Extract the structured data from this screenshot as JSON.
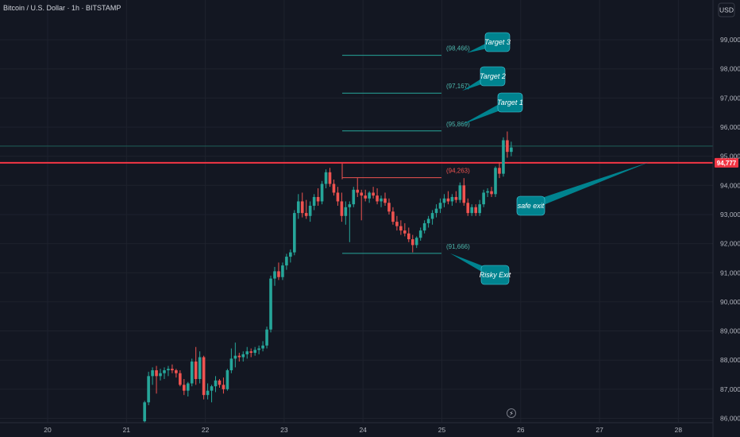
{
  "header": {
    "symbol_title": "Bitcoin / U.S. Dollar · 1h · BITSTAMP",
    "currency_button": "USD"
  },
  "colors": {
    "background": "#131722",
    "grid": "#1e222d",
    "up": "#26a69a",
    "down": "#ef5350",
    "price_line": "#f23645",
    "target_line": "#26a69a",
    "callout": "#00838f",
    "axis_text": "#b2b5be"
  },
  "chart_data": {
    "type": "candlestick",
    "timeframe": "1h",
    "x_ticks": [
      "20",
      "21",
      "22",
      "23",
      "24",
      "25",
      "26",
      "27",
      "28"
    ],
    "y_ticks": [
      "86,000",
      "87,000",
      "88,000",
      "89,000",
      "90,000",
      "91,000",
      "92,000",
      "93,000",
      "94,000",
      "95,000",
      "96,000",
      "97,000",
      "98,000",
      "99,000"
    ],
    "y_tick_values": [
      86000,
      87000,
      88000,
      89000,
      90000,
      91000,
      92000,
      93000,
      94000,
      95000,
      96000,
      97000,
      98000,
      99000
    ],
    "ylim": [
      85800,
      99650
    ],
    "xlim_days": [
      19.55,
      28.55
    ],
    "current_price": {
      "value": 94777,
      "label": "94,777"
    },
    "levels": [
      {
        "name": "Target 3",
        "value": 98466,
        "label": "(98,466)",
        "color": "#26a69a"
      },
      {
        "name": "Target 2",
        "value": 97167,
        "label": "(97,167)",
        "color": "#26a69a"
      },
      {
        "name": "Target 1",
        "value": 95869,
        "label": "(95,869)",
        "color": "#26a69a"
      },
      {
        "name": "",
        "value": 94263,
        "label": "(94,263)",
        "color": "#ef5350"
      },
      {
        "name": "Risky Exit",
        "value": 91666,
        "label": "(91,666)",
        "color": "#26a69a"
      }
    ],
    "upper_reference_line": 95350,
    "annotations": [
      "Target 3",
      "Target 2",
      "Target 1",
      "safe exit",
      "Risky Exit"
    ],
    "candles_ohlc": [
      [
        85900,
        86600,
        85850,
        86550
      ],
      [
        86550,
        87600,
        86450,
        87450
      ],
      [
        87450,
        87750,
        87150,
        87650
      ],
      [
        87650,
        87800,
        86850,
        87450
      ],
      [
        87450,
        87700,
        87300,
        87550
      ],
      [
        87550,
        87750,
        87350,
        87650
      ],
      [
        87650,
        87800,
        87450,
        87700
      ],
      [
        87700,
        87850,
        87550,
        87650
      ],
      [
        87650,
        87700,
        87400,
        87550
      ],
      [
        87550,
        87650,
        87100,
        87150
      ],
      [
        87150,
        87350,
        86800,
        86950
      ],
      [
        86950,
        87250,
        86750,
        87200
      ],
      [
        87200,
        88050,
        87100,
        87950
      ],
      [
        87950,
        88450,
        87150,
        87350
      ],
      [
        87350,
        88300,
        87200,
        88100
      ],
      [
        88100,
        88150,
        86650,
        86800
      ],
      [
        86800,
        87200,
        86650,
        86950
      ],
      [
        86950,
        87150,
        86550,
        87100
      ],
      [
        87100,
        87450,
        86900,
        87300
      ],
      [
        87300,
        87350,
        87050,
        87150
      ],
      [
        87150,
        87400,
        86850,
        87000
      ],
      [
        87000,
        87700,
        86950,
        87650
      ],
      [
        87650,
        88400,
        87550,
        88050
      ],
      [
        88050,
        88600,
        87750,
        88150
      ],
      [
        88150,
        88250,
        87950,
        88100
      ],
      [
        88100,
        88300,
        87950,
        88200
      ],
      [
        88200,
        88450,
        88050,
        88300
      ],
      [
        88300,
        88400,
        88100,
        88250
      ],
      [
        88250,
        88450,
        88150,
        88350
      ],
      [
        88350,
        88500,
        88200,
        88400
      ],
      [
        88400,
        88650,
        88300,
        88500
      ],
      [
        88500,
        89150,
        88400,
        89050
      ],
      [
        89050,
        90900,
        88950,
        90800
      ],
      [
        90800,
        91200,
        90550,
        91050
      ],
      [
        91050,
        91350,
        90750,
        90850
      ],
      [
        90850,
        91350,
        90750,
        91250
      ],
      [
        91250,
        91650,
        91100,
        91550
      ],
      [
        91550,
        91800,
        91350,
        91700
      ],
      [
        91700,
        93150,
        91600,
        93050
      ],
      [
        93050,
        93700,
        92850,
        93450
      ],
      [
        93450,
        93750,
        92900,
        93050
      ],
      [
        93050,
        93500,
        92850,
        92950
      ],
      [
        92950,
        93450,
        92750,
        93300
      ],
      [
        93300,
        93700,
        93150,
        93600
      ],
      [
        93600,
        93900,
        93300,
        93450
      ],
      [
        93450,
        94150,
        93350,
        94050
      ],
      [
        94050,
        94550,
        93900,
        94450
      ],
      [
        94450,
        94600,
        93950,
        94050
      ],
      [
        94050,
        94200,
        93650,
        93750
      ],
      [
        93750,
        93950,
        93300,
        93450
      ],
      [
        93450,
        93750,
        92750,
        92950
      ],
      [
        92950,
        93450,
        92650,
        93250
      ],
      [
        93250,
        93450,
        92050,
        93350
      ],
      [
        93350,
        93950,
        93250,
        93850
      ],
      [
        93850,
        94250,
        93600,
        93750
      ],
      [
        93750,
        93850,
        92800,
        93650
      ],
      [
        93650,
        93850,
        93450,
        93550
      ],
      [
        93550,
        93800,
        93400,
        93750
      ],
      [
        93750,
        93950,
        93550,
        93650
      ],
      [
        93650,
        93900,
        93350,
        93450
      ],
      [
        93450,
        93650,
        93250,
        93550
      ],
      [
        93550,
        93750,
        93300,
        93400
      ],
      [
        93400,
        93550,
        93000,
        93100
      ],
      [
        93100,
        93250,
        92650,
        92750
      ],
      [
        92750,
        92950,
        92450,
        92600
      ],
      [
        92600,
        92800,
        92300,
        92450
      ],
      [
        92450,
        92700,
        92250,
        92350
      ],
      [
        92350,
        92550,
        92050,
        92150
      ],
      [
        92150,
        92300,
        91700,
        91950
      ],
      [
        91950,
        92250,
        91850,
        92200
      ],
      [
        92200,
        92550,
        92100,
        92450
      ],
      [
        92450,
        92800,
        92350,
        92700
      ],
      [
        92700,
        92950,
        92550,
        92850
      ],
      [
        92850,
        93150,
        92650,
        93050
      ],
      [
        93050,
        93350,
        92900,
        93200
      ],
      [
        93200,
        93550,
        93050,
        93400
      ],
      [
        93400,
        93700,
        93250,
        93550
      ],
      [
        93550,
        93800,
        93350,
        93450
      ],
      [
        93450,
        93700,
        93300,
        93600
      ],
      [
        93600,
        93800,
        93400,
        93500
      ],
      [
        93500,
        94100,
        93400,
        94000
      ],
      [
        94000,
        94250,
        93300,
        93400
      ],
      [
        93400,
        93550,
        92950,
        93050
      ],
      [
        93050,
        93350,
        92950,
        93250
      ],
      [
        93250,
        93350,
        92950,
        93050
      ],
      [
        93050,
        93500,
        92950,
        93350
      ],
      [
        93350,
        93850,
        93250,
        93750
      ],
      [
        93750,
        93900,
        93600,
        93800
      ],
      [
        93800,
        93950,
        93600,
        93700
      ],
      [
        93700,
        94650,
        93600,
        94600
      ],
      [
        94600,
        94800,
        94250,
        94400
      ],
      [
        94400,
        95650,
        94300,
        95550
      ],
      [
        95550,
        95850,
        94950,
        95150
      ],
      [
        95150,
        95500,
        95000,
        95300
      ]
    ],
    "candles_x_days": [
      21.23,
      21.28,
      21.33,
      21.38,
      21.43,
      21.48,
      21.53,
      21.58,
      21.63,
      21.68,
      21.73,
      21.78,
      21.83,
      21.88,
      21.93,
      21.98,
      22.03,
      22.08,
      22.13,
      22.18,
      22.23,
      22.28,
      22.33,
      22.38,
      22.43,
      22.48,
      22.53,
      22.58,
      22.63,
      22.68,
      22.73,
      22.78,
      22.83,
      22.88,
      22.93,
      22.98,
      23.03,
      23.08,
      23.13,
      23.18,
      23.23,
      23.28,
      23.33,
      23.38,
      23.43,
      23.48,
      23.53,
      23.58,
      23.63,
      23.68,
      23.73,
      23.78,
      23.83,
      23.88,
      23.93,
      23.98,
      24.03,
      24.08,
      24.13,
      24.18,
      24.23,
      24.28,
      24.33,
      24.38,
      24.43,
      24.48,
      24.53,
      24.58,
      24.63,
      24.68,
      24.73,
      24.78,
      24.83,
      24.88,
      24.93,
      24.98,
      25.03,
      25.08,
      25.13,
      25.18,
      25.23,
      25.28,
      25.33,
      25.38,
      25.43,
      25.48,
      25.53,
      25.58,
      25.63,
      25.68,
      25.73,
      25.78,
      25.83,
      25.88
    ]
  }
}
